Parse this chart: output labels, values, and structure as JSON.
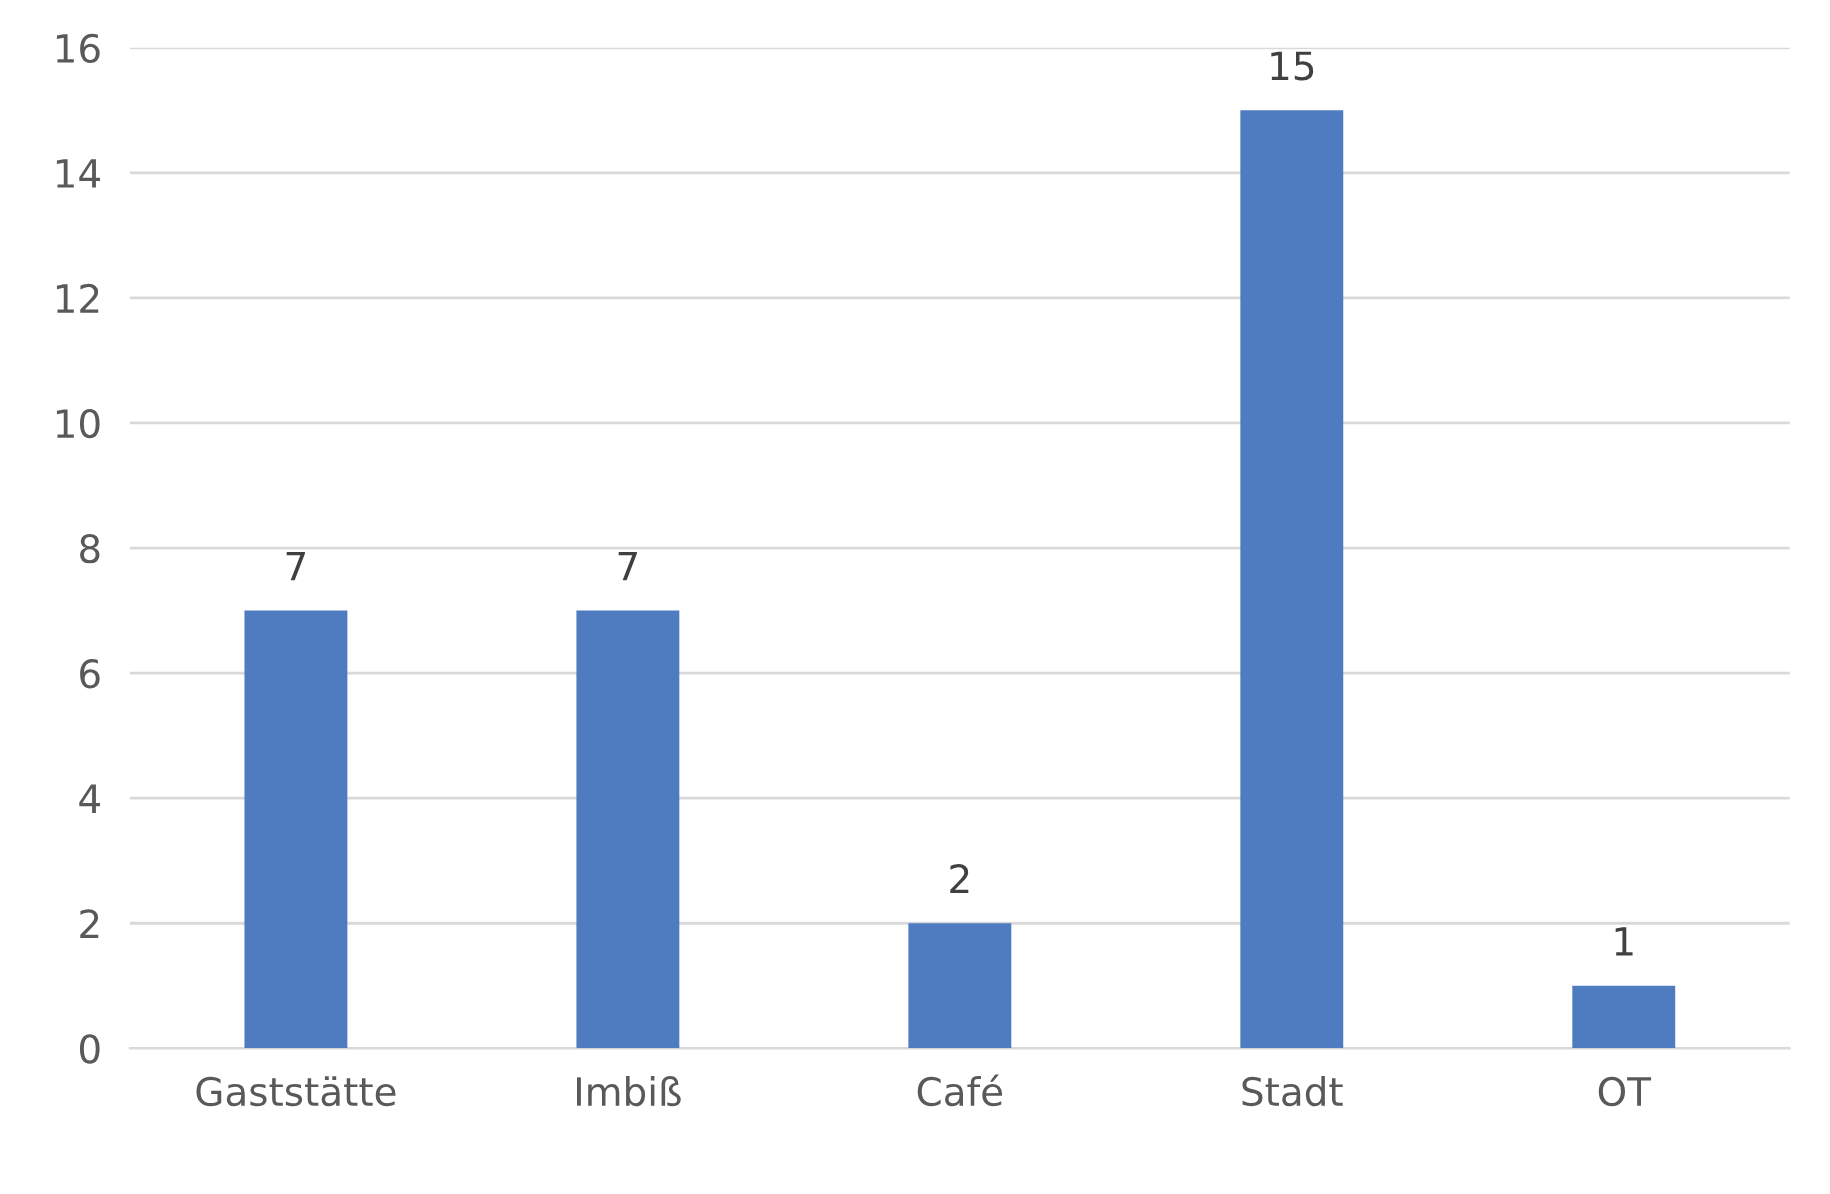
{
  "chart_data": {
    "type": "bar",
    "categories": [
      "Gaststätte",
      "Imbiß",
      "Café",
      "Stadt",
      "OT"
    ],
    "values": [
      7,
      7,
      2,
      15,
      1
    ],
    "color": "#4f7bc1",
    "ylim": [
      0,
      16
    ],
    "yticks": [
      0,
      2,
      4,
      6,
      8,
      10,
      12,
      14,
      16
    ],
    "grid": "y",
    "data_labels": true
  }
}
